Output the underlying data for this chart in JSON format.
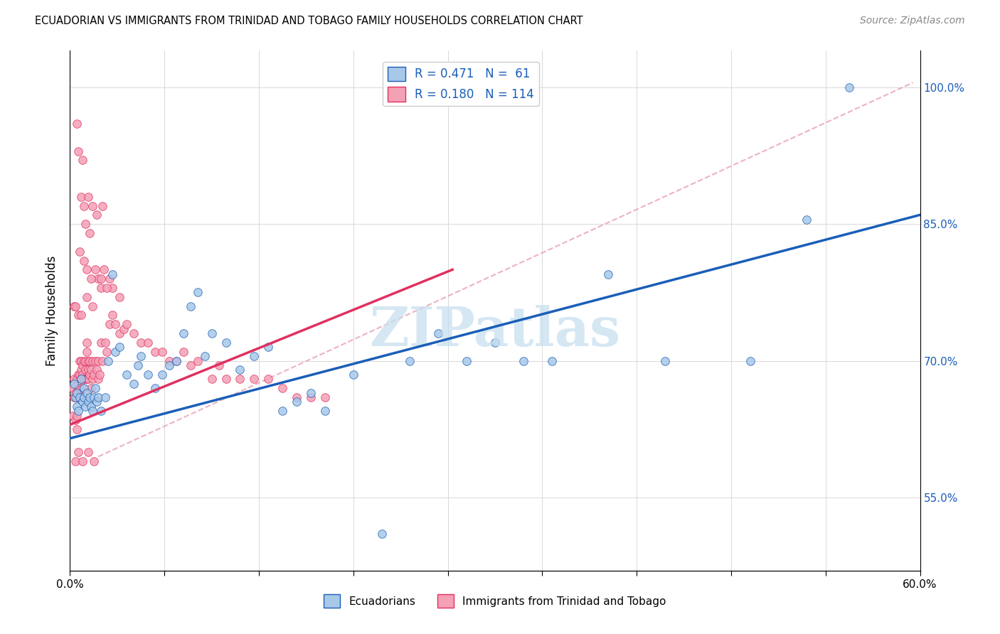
{
  "title": "ECUADORIAN VS IMMIGRANTS FROM TRINIDAD AND TOBAGO FAMILY HOUSEHOLDS CORRELATION CHART",
  "source": "Source: ZipAtlas.com",
  "ylabel": "Family Households",
  "ytick_labels": [
    "55.0%",
    "70.0%",
    "85.0%",
    "100.0%"
  ],
  "ytick_values": [
    0.55,
    0.7,
    0.85,
    1.0
  ],
  "xlim": [
    0.0,
    0.6
  ],
  "ylim": [
    0.47,
    1.04
  ],
  "R_blue": 0.471,
  "N_blue": 61,
  "R_pink": 0.18,
  "N_pink": 114,
  "blue_color": "#a8c8e8",
  "pink_color": "#f4a0b5",
  "blue_line_color": "#1a5eb8",
  "pink_line_color": "#e03060",
  "blue_scatter_x": [
    0.003,
    0.004,
    0.005,
    0.005,
    0.006,
    0.007,
    0.008,
    0.009,
    0.01,
    0.01,
    0.011,
    0.012,
    0.013,
    0.014,
    0.015,
    0.016,
    0.017,
    0.018,
    0.019,
    0.02,
    0.022,
    0.025,
    0.027,
    0.03,
    0.032,
    0.035,
    0.04,
    0.045,
    0.048,
    0.05,
    0.055,
    0.06,
    0.065,
    0.07,
    0.075,
    0.08,
    0.085,
    0.09,
    0.095,
    0.1,
    0.11,
    0.12,
    0.13,
    0.14,
    0.15,
    0.16,
    0.17,
    0.18,
    0.2,
    0.22,
    0.24,
    0.26,
    0.28,
    0.3,
    0.32,
    0.34,
    0.38,
    0.42,
    0.48,
    0.52,
    0.55
  ],
  "blue_scatter_y": [
    0.675,
    0.66,
    0.665,
    0.65,
    0.645,
    0.66,
    0.68,
    0.655,
    0.66,
    0.67,
    0.65,
    0.665,
    0.655,
    0.66,
    0.65,
    0.645,
    0.66,
    0.67,
    0.655,
    0.66,
    0.645,
    0.66,
    0.7,
    0.795,
    0.71,
    0.715,
    0.685,
    0.675,
    0.695,
    0.705,
    0.685,
    0.67,
    0.685,
    0.695,
    0.7,
    0.73,
    0.76,
    0.775,
    0.705,
    0.73,
    0.72,
    0.69,
    0.705,
    0.715,
    0.645,
    0.655,
    0.665,
    0.645,
    0.685,
    0.51,
    0.7,
    0.73,
    0.7,
    0.72,
    0.7,
    0.7,
    0.795,
    0.7,
    0.7,
    0.855,
    1.0
  ],
  "pink_scatter_x": [
    0.002,
    0.002,
    0.003,
    0.003,
    0.004,
    0.004,
    0.005,
    0.005,
    0.005,
    0.005,
    0.006,
    0.006,
    0.006,
    0.007,
    0.007,
    0.007,
    0.007,
    0.008,
    0.008,
    0.008,
    0.009,
    0.009,
    0.009,
    0.009,
    0.01,
    0.01,
    0.01,
    0.011,
    0.011,
    0.011,
    0.012,
    0.012,
    0.012,
    0.013,
    0.013,
    0.013,
    0.014,
    0.014,
    0.015,
    0.015,
    0.016,
    0.016,
    0.017,
    0.018,
    0.019,
    0.02,
    0.02,
    0.021,
    0.022,
    0.023,
    0.025,
    0.026,
    0.028,
    0.03,
    0.032,
    0.035,
    0.038,
    0.04,
    0.045,
    0.05,
    0.055,
    0.06,
    0.065,
    0.07,
    0.075,
    0.08,
    0.085,
    0.09,
    0.1,
    0.105,
    0.11,
    0.12,
    0.13,
    0.14,
    0.15,
    0.16,
    0.17,
    0.18,
    0.02,
    0.022,
    0.024,
    0.028,
    0.03,
    0.035,
    0.01,
    0.012,
    0.015,
    0.018,
    0.022,
    0.026,
    0.008,
    0.01,
    0.013,
    0.016,
    0.019,
    0.023,
    0.006,
    0.009,
    0.007,
    0.005,
    0.011,
    0.014,
    0.003,
    0.004,
    0.006,
    0.008,
    0.012,
    0.016,
    0.004,
    0.006,
    0.009,
    0.013,
    0.017
  ],
  "pink_scatter_y": [
    0.67,
    0.64,
    0.68,
    0.66,
    0.665,
    0.635,
    0.66,
    0.68,
    0.64,
    0.625,
    0.67,
    0.685,
    0.66,
    0.7,
    0.67,
    0.685,
    0.66,
    0.68,
    0.7,
    0.69,
    0.67,
    0.685,
    0.695,
    0.66,
    0.68,
    0.7,
    0.66,
    0.68,
    0.7,
    0.69,
    0.68,
    0.71,
    0.72,
    0.69,
    0.7,
    0.68,
    0.7,
    0.685,
    0.67,
    0.69,
    0.68,
    0.7,
    0.685,
    0.7,
    0.69,
    0.68,
    0.7,
    0.685,
    0.72,
    0.7,
    0.72,
    0.71,
    0.74,
    0.75,
    0.74,
    0.73,
    0.735,
    0.74,
    0.73,
    0.72,
    0.72,
    0.71,
    0.71,
    0.7,
    0.7,
    0.71,
    0.695,
    0.7,
    0.68,
    0.695,
    0.68,
    0.68,
    0.68,
    0.68,
    0.67,
    0.66,
    0.66,
    0.66,
    0.79,
    0.78,
    0.8,
    0.79,
    0.78,
    0.77,
    0.81,
    0.8,
    0.79,
    0.8,
    0.79,
    0.78,
    0.88,
    0.87,
    0.88,
    0.87,
    0.86,
    0.87,
    0.93,
    0.92,
    0.82,
    0.96,
    0.85,
    0.84,
    0.76,
    0.76,
    0.75,
    0.75,
    0.77,
    0.76,
    0.59,
    0.6,
    0.59,
    0.6,
    0.59
  ],
  "blue_trend": [
    0.0,
    0.6,
    0.615,
    0.86
  ],
  "pink_trend": [
    0.0,
    0.27,
    0.63,
    0.8
  ],
  "dashed_line": [
    0.02,
    0.595,
    0.595,
    1.005
  ]
}
